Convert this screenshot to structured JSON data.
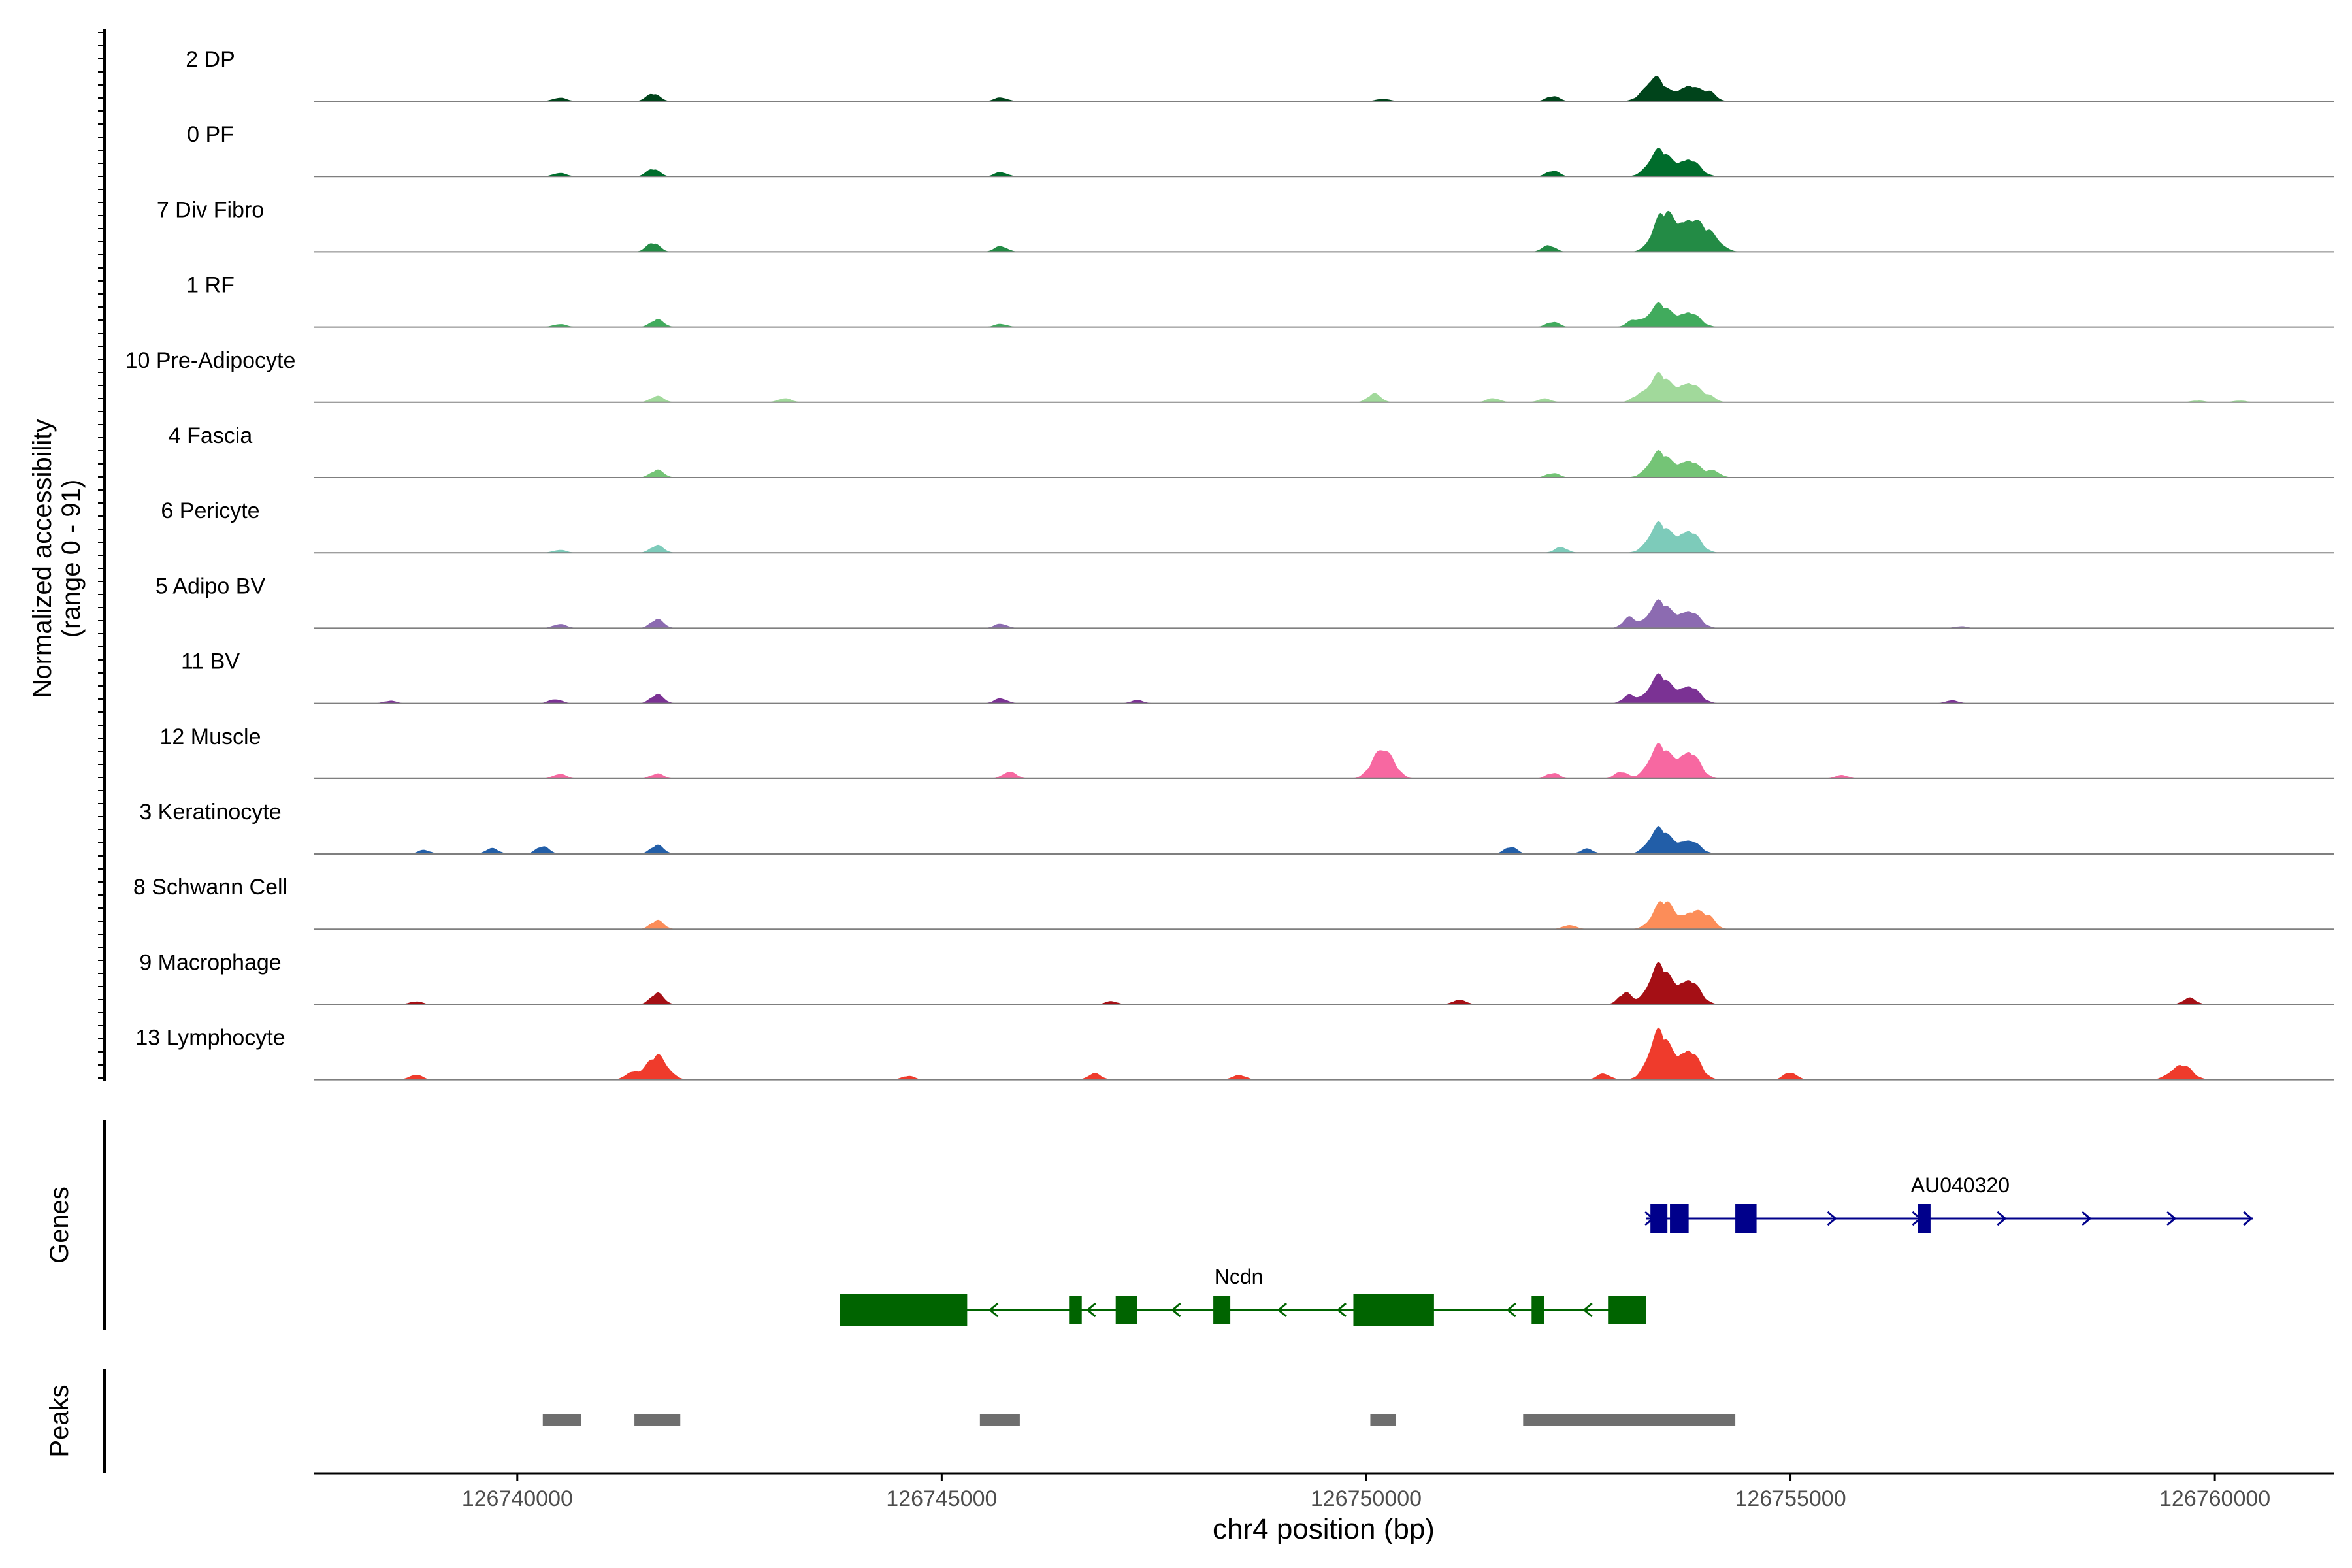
{
  "chart_data": {
    "type": "area",
    "title": "",
    "xlabel": "chr4 position (bp)",
    "ylabel": "Normalized accessibility",
    "ylabel_sub": "(range 0 - 91)",
    "x_range": [
      126737600,
      126761400
    ],
    "xticks": [
      126740000,
      126745000,
      126750000,
      126755000,
      126760000
    ],
    "xtick_labels": [
      "126740000",
      "126745000",
      "126750000",
      "126755000",
      "126760000"
    ],
    "y_range": [
      0,
      91
    ],
    "tracks": [
      {
        "name": "2 DP",
        "color": "#00441b",
        "peaks": [
          [
            126753400,
            38
          ],
          [
            126753800,
            26
          ],
          [
            126754050,
            13
          ],
          [
            126741600,
            12
          ],
          [
            126740500,
            6
          ],
          [
            126745700,
            6
          ],
          [
            126752200,
            8
          ],
          [
            126750200,
            4
          ]
        ]
      },
      {
        "name": "0 PF",
        "color": "#006d2c",
        "peaks": [
          [
            126753450,
            42
          ],
          [
            126753800,
            28
          ],
          [
            126741600,
            12
          ],
          [
            126740500,
            6
          ],
          [
            126745700,
            7
          ],
          [
            126752200,
            9
          ]
        ]
      },
      {
        "name": "7 Div Fibro",
        "color": "#238b45",
        "peaks": [
          [
            126753500,
            60
          ],
          [
            126753800,
            48
          ],
          [
            126754050,
            28
          ],
          [
            126741600,
            14
          ],
          [
            126745700,
            9
          ],
          [
            126752150,
            10
          ]
        ]
      },
      {
        "name": "1 RF",
        "color": "#41ab5d",
        "peaks": [
          [
            126753450,
            36
          ],
          [
            126753800,
            24
          ],
          [
            126741650,
            12
          ],
          [
            126740500,
            5
          ],
          [
            126745700,
            5
          ],
          [
            126752200,
            8
          ],
          [
            126753150,
            10
          ]
        ]
      },
      {
        "name": "10 Pre-Adipocyte",
        "color": "#a1d99b",
        "peaks": [
          [
            126753450,
            44
          ],
          [
            126753800,
            32
          ],
          [
            126741650,
            10
          ],
          [
            126743150,
            7
          ],
          [
            126750100,
            14
          ],
          [
            126751500,
            7
          ],
          [
            126752100,
            6
          ],
          [
            126753200,
            8
          ],
          [
            126754050,
            8
          ],
          [
            126759800,
            3
          ],
          [
            126760300,
            3
          ]
        ]
      },
      {
        "name": "4 Fascia",
        "color": "#74c476",
        "peaks": [
          [
            126753450,
            40
          ],
          [
            126753800,
            28
          ],
          [
            126741650,
            12
          ],
          [
            126752200,
            7
          ],
          [
            126754100,
            10
          ]
        ]
      },
      {
        "name": "6 Pericyte",
        "color": "#7dcbba",
        "peaks": [
          [
            126753450,
            46
          ],
          [
            126753800,
            36
          ],
          [
            126741650,
            12
          ],
          [
            126752300,
            9
          ],
          [
            126740500,
            5
          ]
        ]
      },
      {
        "name": "5 Adipo BV",
        "color": "#8c6bb1",
        "peaks": [
          [
            126753450,
            42
          ],
          [
            126753800,
            28
          ],
          [
            126741650,
            14
          ],
          [
            126740500,
            7
          ],
          [
            126745700,
            7
          ],
          [
            126753100,
            16
          ],
          [
            126757000,
            3
          ]
        ]
      },
      {
        "name": "11 BV",
        "color": "#7b3294",
        "peaks": [
          [
            126753450,
            44
          ],
          [
            126753800,
            28
          ],
          [
            126741650,
            14
          ],
          [
            126740450,
            7
          ],
          [
            126745700,
            8
          ],
          [
            126753100,
            12
          ],
          [
            126756900,
            5
          ],
          [
            126738500,
            4
          ],
          [
            126747300,
            5
          ]
        ]
      },
      {
        "name": "12 Muscle",
        "color": "#f768a1",
        "peaks": [
          [
            126753450,
            52
          ],
          [
            126753800,
            44
          ],
          [
            126750200,
            50
          ],
          [
            126745800,
            12
          ],
          [
            126741650,
            8
          ],
          [
            126740500,
            8
          ],
          [
            126752200,
            9
          ],
          [
            126755600,
            6
          ],
          [
            126753000,
            11
          ]
        ]
      },
      {
        "name": "3 Keratinocyte",
        "color": "#225ea8",
        "peaks": [
          [
            126753450,
            40
          ],
          [
            126753800,
            22
          ],
          [
            126741650,
            14
          ],
          [
            126740300,
            12
          ],
          [
            126739700,
            9
          ],
          [
            126751700,
            11
          ],
          [
            126752600,
            8
          ],
          [
            126738900,
            6
          ]
        ]
      },
      {
        "name": "8 Schwann Cell",
        "color": "#fc8d59",
        "peaks": [
          [
            126753500,
            44
          ],
          [
            126753850,
            28
          ],
          [
            126741650,
            14
          ],
          [
            126754050,
            14
          ],
          [
            126752400,
            7
          ]
        ]
      },
      {
        "name": "9 Macrophage",
        "color": "#a50f15",
        "peaks": [
          [
            126753450,
            62
          ],
          [
            126753800,
            40
          ],
          [
            126741650,
            18
          ],
          [
            126759700,
            10
          ],
          [
            126753050,
            18
          ],
          [
            126751100,
            8
          ],
          [
            126747000,
            5
          ],
          [
            126738800,
            5
          ]
        ]
      },
      {
        "name": "13 Lymphocyte",
        "color": "#ef3b2c",
        "peaks": [
          [
            126753450,
            76
          ],
          [
            126753800,
            48
          ],
          [
            126741650,
            38
          ],
          [
            126759600,
            24
          ],
          [
            126755000,
            12
          ],
          [
            126741350,
            12
          ],
          [
            126746800,
            10
          ],
          [
            126748500,
            8
          ],
          [
            126738800,
            8
          ],
          [
            126744600,
            6
          ],
          [
            126752800,
            10
          ]
        ]
      }
    ],
    "genes": [
      {
        "name": "AU040320",
        "strand": "+",
        "color": "#00008b",
        "start": 126753300,
        "end": 126760450,
        "exons": [
          [
            126753350,
            126753550
          ],
          [
            126753580,
            126753800
          ],
          [
            126754350,
            126754600
          ],
          [
            126756500,
            126756650
          ]
        ],
        "arrows": [
          126753350,
          126755500,
          126756500,
          126757500,
          126758500,
          126759500,
          126760400
        ]
      },
      {
        "name": "Ncdn",
        "strand": "-",
        "color": "#006400",
        "start": 126743800,
        "end": 126753300,
        "exons": [
          [
            126743800,
            126745300
          ],
          [
            126746500,
            126746650
          ],
          [
            126747050,
            126747300
          ],
          [
            126748200,
            126748400
          ],
          [
            126749850,
            126750800
          ],
          [
            126751950,
            126752100
          ],
          [
            126752850,
            126753300
          ]
        ],
        "arrows": [
          126745600,
          126746750,
          126747750,
          126749000,
          126749700,
          126751700,
          126752600
        ]
      }
    ],
    "peaks": [
      [
        126740300,
        126740750
      ],
      [
        126741380,
        126741920
      ],
      [
        126745450,
        126745920
      ],
      [
        126750050,
        126750350
      ],
      [
        126751850,
        126754350
      ]
    ],
    "panel_labels": {
      "genes": "Genes",
      "peaks": "Peaks"
    }
  }
}
